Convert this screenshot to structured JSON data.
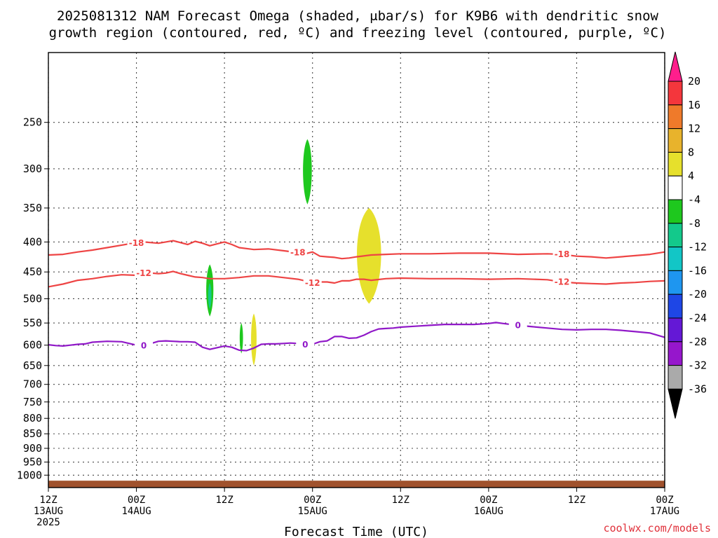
{
  "chart_data": {
    "type": "time-height cross section",
    "title": [
      "2025081312 NAM Forecast Omega (shaded, μbar/s) for K9B6 with dendritic snow",
      "growth region (contoured, red, ºC) and freezing level (contoured, purple, ºC)"
    ],
    "xlabel": "Forecast Time (UTC)",
    "ylabel": "",
    "y_scale": "log-pressure (inverted)",
    "ylim": [
      1050,
      190
    ],
    "xlim": [
      0,
      84
    ],
    "y_ticks": [
      250,
      300,
      350,
      400,
      450,
      500,
      550,
      600,
      650,
      700,
      750,
      800,
      850,
      900,
      950,
      1000
    ],
    "x_ticks": [
      {
        "hour": 0,
        "lines": [
          "12Z",
          "13AUG",
          "2025"
        ]
      },
      {
        "hour": 12,
        "lines": [
          "00Z",
          "14AUG"
        ]
      },
      {
        "hour": 24,
        "lines": [
          "12Z"
        ]
      },
      {
        "hour": 36,
        "lines": [
          "00Z",
          "15AUG"
        ]
      },
      {
        "hour": 48,
        "lines": [
          "12Z"
        ]
      },
      {
        "hour": 60,
        "lines": [
          "00Z",
          "16AUG"
        ]
      },
      {
        "hour": 72,
        "lines": [
          "12Z"
        ]
      },
      {
        "hour": 84,
        "lines": [
          "00Z",
          "17AUG"
        ]
      }
    ],
    "grid": true,
    "colorbar": {
      "position": "right",
      "labels": [
        "20",
        "16",
        "12",
        "8",
        "4",
        "-4",
        "-8",
        "-12",
        "-16",
        "-20",
        "-24",
        "-28",
        "-32",
        "-36"
      ],
      "colors": [
        "#ff1e8c",
        "#f4363c",
        "#ef7a2a",
        "#e8b32c",
        "#e6e02c",
        "#ffffff",
        "#1ec81e",
        "#13c98b",
        "#12c6c6",
        "#1e96f0",
        "#1e46e6",
        "#6418d6",
        "#9616cc",
        "#aaaaaa",
        "#000000"
      ]
    },
    "contours": [
      {
        "label": "-18",
        "color": "#ee4444",
        "x": [
          0,
          2,
          4,
          6,
          8,
          10,
          11,
          12,
          13,
          14,
          15,
          16,
          17,
          18,
          19,
          20,
          21,
          22,
          23,
          24,
          25,
          26,
          28,
          30,
          32,
          34,
          35,
          36,
          37,
          38,
          39,
          40,
          41,
          42,
          44,
          46,
          48,
          52,
          56,
          60,
          64,
          68,
          70,
          72,
          74,
          76,
          78,
          80,
          82,
          84
        ],
        "y": [
          421,
          420,
          416,
          413,
          409,
          405,
          403,
          402,
          400,
          401,
          402,
          400,
          398,
          401,
          404,
          399,
          402,
          406,
          403,
          400,
          404,
          409,
          412,
          411,
          414,
          417,
          419,
          416,
          423,
          424,
          425,
          427,
          426,
          424,
          421,
          420,
          419,
          419,
          418,
          418,
          420,
          419,
          420,
          423,
          424,
          426,
          424,
          422,
          420,
          416
        ]
      },
      {
        "label": "-12",
        "color": "#ee4444",
        "x": [
          0,
          2,
          4,
          6,
          8,
          10,
          12,
          13,
          14,
          15,
          16,
          17,
          18,
          19,
          20,
          21,
          22,
          24,
          26,
          28,
          30,
          32,
          34,
          35,
          36,
          37,
          38,
          39,
          40,
          41,
          42,
          43,
          44,
          46,
          48,
          52,
          56,
          60,
          64,
          68,
          70,
          72,
          74,
          76,
          78,
          80,
          82,
          84
        ],
        "y": [
          477,
          472,
          465,
          462,
          458,
          455,
          456,
          452,
          452,
          453,
          452,
          449,
          453,
          456,
          459,
          460,
          462,
          462,
          460,
          457,
          457,
          460,
          463,
          466,
          470,
          468,
          468,
          470,
          466,
          466,
          463,
          463,
          465,
          462,
          461,
          462,
          462,
          463,
          462,
          464,
          468,
          470,
          471,
          472,
          470,
          469,
          467,
          466
        ]
      },
      {
        "label": "0",
        "color": "#9018c8",
        "x": [
          0,
          1,
          2,
          3,
          4,
          5,
          6,
          8,
          10,
          12,
          13,
          14,
          15,
          16,
          17,
          18,
          19,
          20,
          21,
          22,
          23,
          24,
          25,
          26,
          27,
          28,
          29,
          30,
          31,
          32,
          33,
          34,
          35,
          36,
          37,
          38,
          39,
          40,
          41,
          42,
          43,
          44,
          45,
          46,
          47,
          48,
          50,
          52,
          54,
          56,
          58,
          60,
          61,
          62,
          64,
          66,
          68,
          70,
          72,
          74,
          76,
          78,
          80,
          82,
          84
        ],
        "y": [
          599,
          601,
          602,
          600,
          598,
          597,
          593,
          591,
          592,
          600,
          601,
          596,
          591,
          590,
          591,
          592,
          592,
          593,
          605,
          610,
          606,
          602,
          605,
          612,
          613,
          607,
          598,
          597,
          597,
          596,
          595,
          596,
          599,
          598,
          592,
          590,
          580,
          580,
          584,
          583,
          577,
          569,
          563,
          562,
          561,
          559,
          557,
          555,
          553,
          553,
          553,
          551,
          549,
          551,
          555,
          558,
          561,
          564,
          565,
          564,
          564,
          566,
          569,
          572,
          582
        ]
      }
    ],
    "shaded_regions": [
      {
        "value_range": [
          -8,
          -4
        ],
        "color": "#1ec81e",
        "x_center": 35.3,
        "x_halfwidth": 0.8,
        "p_top": 267,
        "p_bottom": 345
      },
      {
        "value_range": [
          -8,
          -4
        ],
        "color": "#1ec81e",
        "x_center": 22.0,
        "x_halfwidth": 0.65,
        "p_top": 437,
        "p_bottom": 536
      },
      {
        "value_range": [
          -12,
          -8
        ],
        "color": "#13c98b",
        "x_center": 22.0,
        "x_halfwidth": 0.3,
        "p_top": 470,
        "p_bottom": 520
      },
      {
        "value_range": [
          -8,
          -4
        ],
        "color": "#1ec81e",
        "x_center": 26.3,
        "x_halfwidth": 0.3,
        "p_top": 550,
        "p_bottom": 620
      },
      {
        "value_range": [
          4,
          8
        ],
        "color": "#e6e02c",
        "x_center": 28.0,
        "x_halfwidth": 0.5,
        "p_top": 530,
        "p_bottom": 650
      },
      {
        "value_range": [
          4,
          8
        ],
        "color": "#e6e02c",
        "x_center": 43.7,
        "x_halfwidth": 2.2,
        "p_top": 350,
        "p_bottom": 510
      }
    ],
    "terrain": {
      "color": "#a0522d",
      "p_surface": 1022
    }
  },
  "credit": "coolwx.com/models"
}
